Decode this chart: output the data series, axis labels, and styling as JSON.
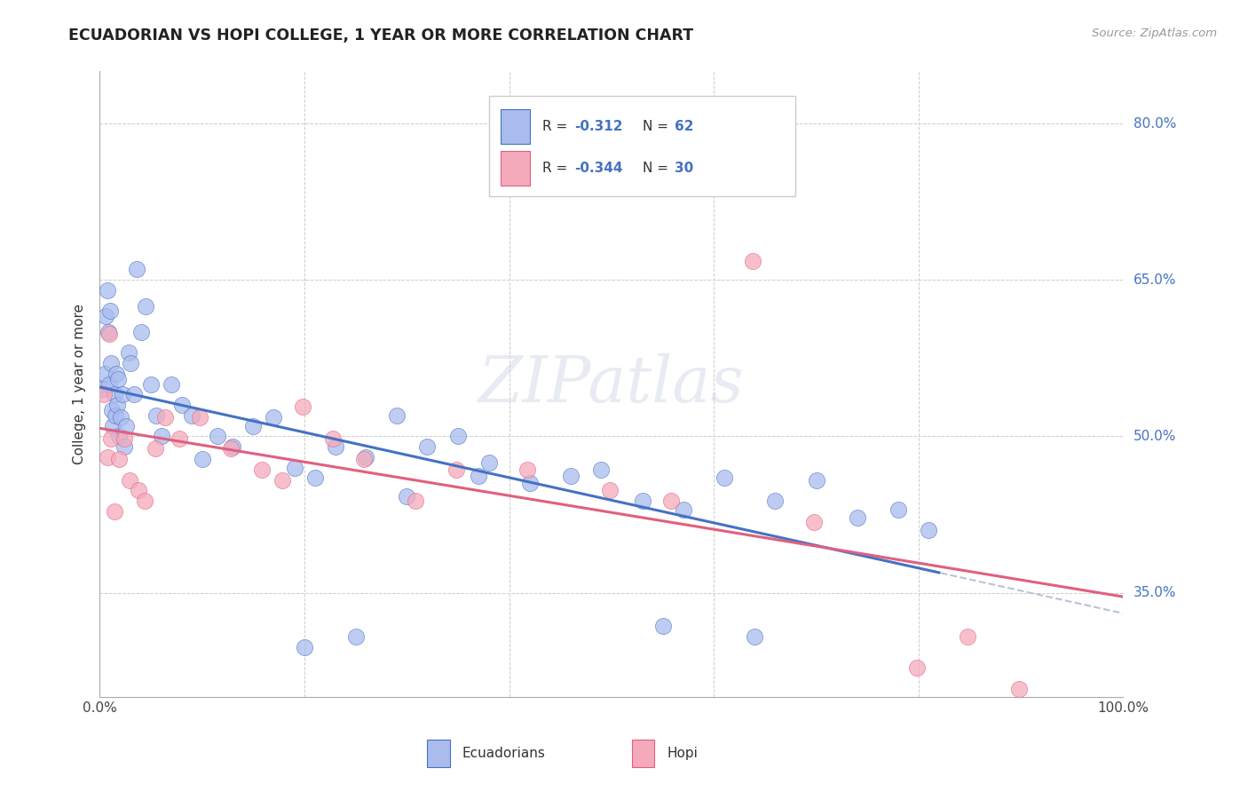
{
  "title": "ECUADORIAN VS HOPI COLLEGE, 1 YEAR OR MORE CORRELATION CHART",
  "source": "Source: ZipAtlas.com",
  "ylabel": "College, 1 year or more",
  "x_min": 0.0,
  "x_max": 1.0,
  "y_min": 0.25,
  "y_max": 0.85,
  "x_tick_positions": [
    0.0,
    0.2,
    0.4,
    0.6,
    0.8,
    1.0
  ],
  "x_tick_labels": [
    "0.0%",
    "",
    "",
    "",
    "",
    "100.0%"
  ],
  "y_tick_positions": [
    0.35,
    0.5,
    0.65,
    0.8
  ],
  "y_tick_labels": [
    "35.0%",
    "50.0%",
    "65.0%",
    "80.0%"
  ],
  "ecuadorian_face_color": "#aabbee",
  "hopi_face_color": "#f5aabb",
  "line_ecuadorian_color": "#4472c4",
  "line_hopi_color": "#e06080",
  "line_dashed_color": "#b8c4d4",
  "ecuadorians_x": [
    0.003,
    0.005,
    0.006,
    0.007,
    0.008,
    0.009,
    0.01,
    0.011,
    0.012,
    0.013,
    0.014,
    0.015,
    0.016,
    0.017,
    0.018,
    0.019,
    0.02,
    0.022,
    0.024,
    0.026,
    0.028,
    0.03,
    0.033,
    0.036,
    0.04,
    0.045,
    0.05,
    0.055,
    0.06,
    0.07,
    0.08,
    0.09,
    0.1,
    0.115,
    0.13,
    0.15,
    0.17,
    0.19,
    0.21,
    0.23,
    0.26,
    0.29,
    0.32,
    0.35,
    0.38,
    0.42,
    0.46,
    0.49,
    0.53,
    0.57,
    0.61,
    0.66,
    0.7,
    0.74,
    0.78,
    0.81,
    0.64,
    0.55,
    0.37,
    0.3,
    0.25,
    0.2
  ],
  "ecuadorians_y": [
    0.545,
    0.56,
    0.615,
    0.64,
    0.6,
    0.55,
    0.62,
    0.57,
    0.525,
    0.51,
    0.54,
    0.52,
    0.56,
    0.53,
    0.555,
    0.5,
    0.518,
    0.54,
    0.49,
    0.51,
    0.58,
    0.57,
    0.54,
    0.66,
    0.6,
    0.625,
    0.55,
    0.52,
    0.5,
    0.55,
    0.53,
    0.52,
    0.478,
    0.5,
    0.49,
    0.51,
    0.518,
    0.47,
    0.46,
    0.49,
    0.48,
    0.52,
    0.49,
    0.5,
    0.475,
    0.455,
    0.462,
    0.468,
    0.438,
    0.43,
    0.46,
    0.438,
    0.458,
    0.422,
    0.43,
    0.41,
    0.308,
    0.318,
    0.462,
    0.442,
    0.308,
    0.298
  ],
  "hopi_x": [
    0.004,
    0.007,
    0.009,
    0.011,
    0.014,
    0.019,
    0.024,
    0.029,
    0.038,
    0.044,
    0.054,
    0.064,
    0.078,
    0.098,
    0.128,
    0.158,
    0.178,
    0.198,
    0.228,
    0.258,
    0.308,
    0.348,
    0.418,
    0.498,
    0.558,
    0.638,
    0.698,
    0.798,
    0.848,
    0.898
  ],
  "hopi_y": [
    0.54,
    0.48,
    0.598,
    0.498,
    0.428,
    0.478,
    0.498,
    0.458,
    0.448,
    0.438,
    0.488,
    0.518,
    0.498,
    0.518,
    0.488,
    0.468,
    0.458,
    0.528,
    0.498,
    0.478,
    0.438,
    0.468,
    0.468,
    0.448,
    0.438,
    0.668,
    0.418,
    0.278,
    0.308,
    0.258
  ]
}
